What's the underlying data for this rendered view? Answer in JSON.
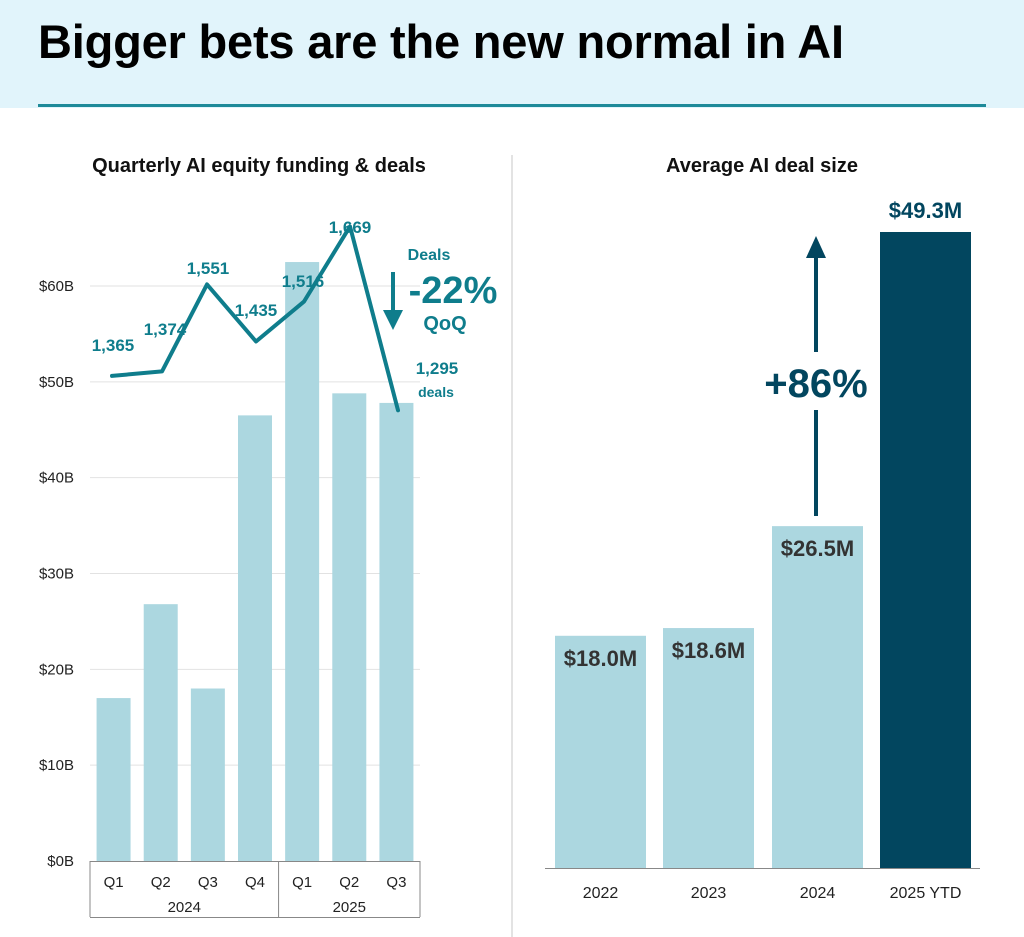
{
  "title": "Bigger bets are the new normal in AI",
  "colors": {
    "light_bar": "#acd7e0",
    "dark_bar": "#02465f",
    "line": "#0f7d8c",
    "header_bg": "#e1f4fb"
  },
  "chart_data": [
    {
      "type": "bar",
      "title": "Quarterly AI equity funding & deals",
      "categories": [
        "Q1",
        "Q2",
        "Q3",
        "Q4",
        "Q1",
        "Q2",
        "Q3"
      ],
      "category_groups": [
        {
          "label": "2024",
          "count": 4
        },
        {
          "label": "2025",
          "count": 3
        }
      ],
      "series": [
        {
          "values": [
            17.0,
            26.8,
            18.0,
            46.5,
            62.5,
            48.8,
            47.8
          ]
        },
        {
          "name": "Deals",
          "type": "line",
          "values": [
            1365,
            1374,
            1551,
            1435,
            1516,
            1669,
            1295
          ],
          "labels": [
            "1,365",
            "1,374",
            "1,551",
            "1,435",
            "1,516",
            "1,669",
            "1,295"
          ]
        }
      ],
      "yticks": [
        "$0B",
        "$10B",
        "$20B",
        "$30B",
        "$40B",
        "$50B",
        "$60B"
      ],
      "ylim": [
        0,
        60
      ],
      "grid": true,
      "annotations": {
        "deals_label": "Deals",
        "change": "-22%",
        "change_period": "QoQ",
        "last_deals_unit": "deals"
      }
    },
    {
      "type": "bar",
      "title": "Average AI deal size",
      "categories": [
        "2022",
        "2023",
        "2024",
        "2025 YTD"
      ],
      "values": [
        18.0,
        18.6,
        26.5,
        49.3
      ],
      "value_labels": [
        "$18.0M",
        "$18.6M",
        "$26.5M",
        "$49.3M"
      ],
      "annotation": "+86%",
      "grid": false
    }
  ]
}
